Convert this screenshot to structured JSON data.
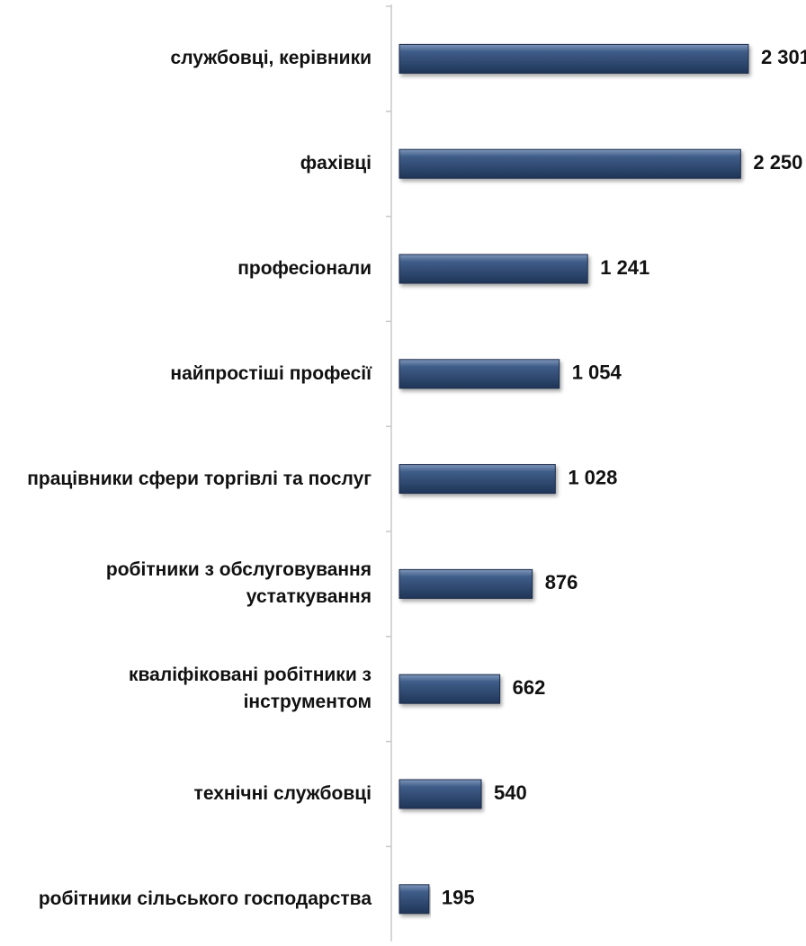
{
  "chart_data": {
    "type": "bar",
    "orientation": "horizontal",
    "color": "#2e4a72",
    "categories": [
      "службовці, керівники",
      "фахівці",
      "професіонали",
      "найпростіші професії",
      "працівники сфери торгівлі та послуг",
      "робітники з обслуговування устаткування",
      "кваліфіковані робітники з інструментом",
      "технічні службовці",
      "робітники сільського господарства"
    ],
    "values": [
      2301,
      2250,
      1241,
      1054,
      1028,
      876,
      662,
      540,
      195
    ],
    "value_labels": [
      "2 301",
      "2 250",
      "1 241",
      "1 054",
      "1 028",
      "876",
      "662",
      "540",
      "195"
    ]
  }
}
